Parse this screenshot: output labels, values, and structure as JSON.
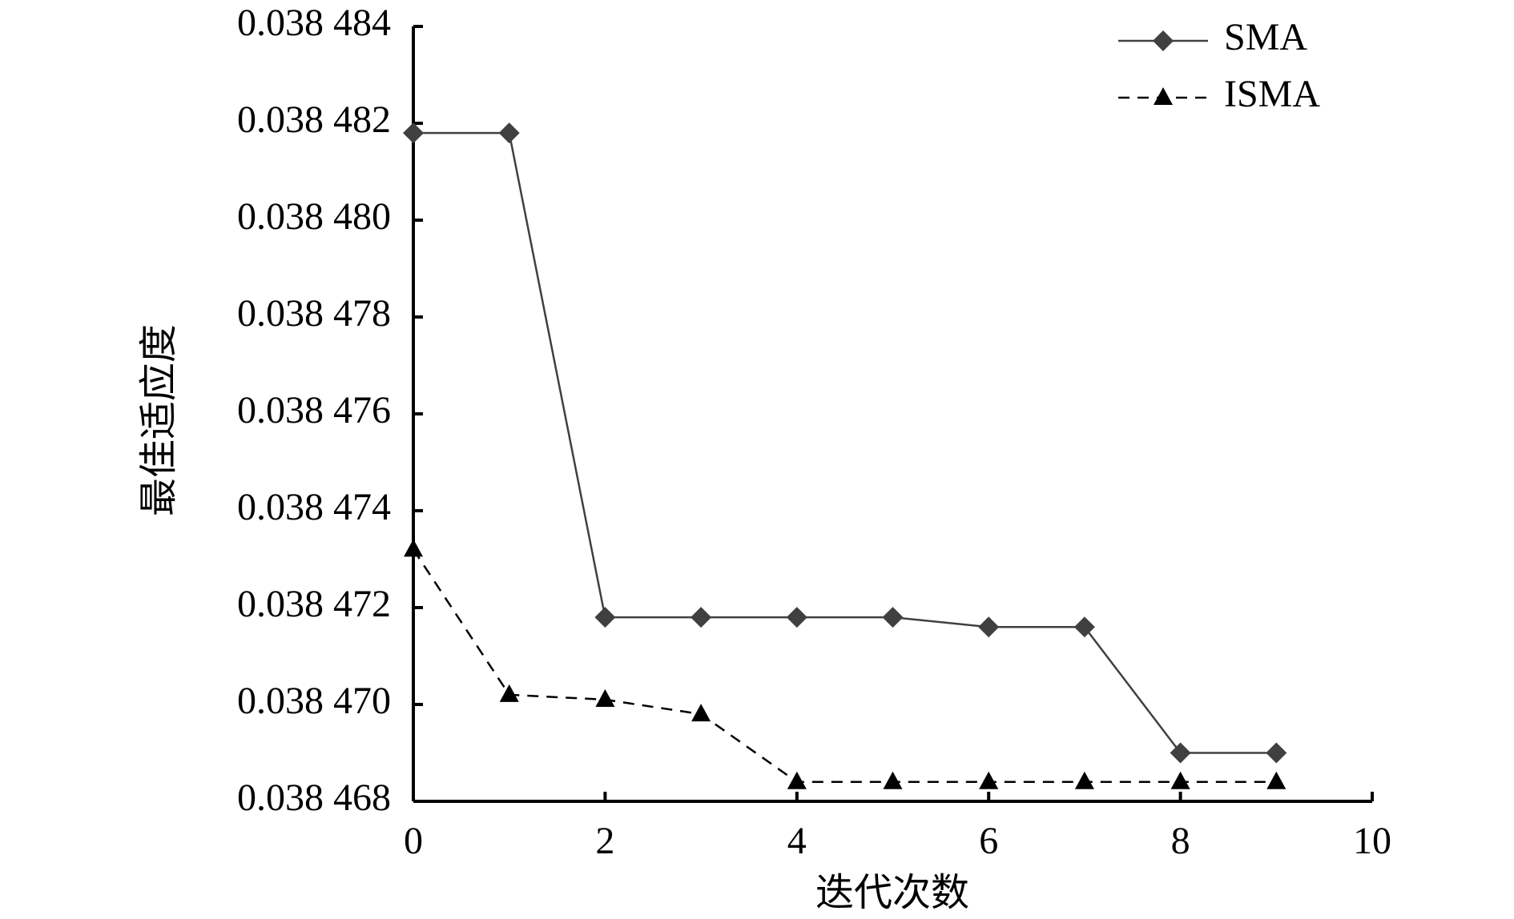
{
  "chart_data": {
    "type": "line",
    "x_label": "迭代次数",
    "y_label": "最佳适应度",
    "xlim": [
      0,
      10
    ],
    "xticks": [
      0,
      2,
      4,
      6,
      8,
      10
    ],
    "ylim": [
      0.038468,
      0.038484
    ],
    "yticks": [
      {
        "value": 0.038468,
        "label": "0.038 468"
      },
      {
        "value": 0.03847,
        "label": "0.038 470"
      },
      {
        "value": 0.038472,
        "label": "0.038 472"
      },
      {
        "value": 0.038474,
        "label": "0.038 474"
      },
      {
        "value": 0.038476,
        "label": "0.038 476"
      },
      {
        "value": 0.038478,
        "label": "0.038 478"
      },
      {
        "value": 0.03848,
        "label": "0.038 480"
      },
      {
        "value": 0.038482,
        "label": "0.038 482"
      },
      {
        "value": 0.038484,
        "label": "0.038 484"
      }
    ],
    "x": [
      0,
      1,
      2,
      3,
      4,
      5,
      6,
      7,
      8,
      9
    ],
    "legend": "upper right",
    "series": [
      {
        "name": "SMA",
        "color": "#404040",
        "marker": "diamond",
        "dashed": false,
        "values": [
          0.0384818,
          0.0384818,
          0.0384718,
          0.0384718,
          0.0384718,
          0.0384718,
          0.0384716,
          0.0384716,
          0.038469,
          0.038469
        ]
      },
      {
        "name": "ISMA",
        "color": "#000000",
        "marker": "triangle",
        "dashed": true,
        "values": [
          0.0384732,
          0.0384702,
          0.0384701,
          0.0384698,
          0.0384684,
          0.0384684,
          0.0384684,
          0.0384684,
          0.0384684,
          0.0384684
        ]
      }
    ]
  }
}
